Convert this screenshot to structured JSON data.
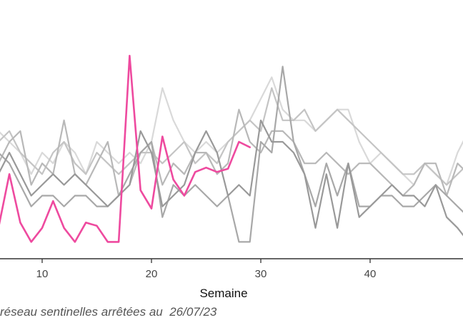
{
  "chart_data": {
    "type": "line",
    "xlabel": "Semaine",
    "ylabel": "",
    "x_ticks": [
      10,
      20,
      30,
      40
    ],
    "grid": false,
    "legend": "none",
    "colors": {
      "highlight": "#ee4a9f",
      "axis": "#333333"
    },
    "series": [
      {
        "style": "highlight",
        "color": "#ee4a9f",
        "x": [
          6,
          7,
          8,
          9,
          10,
          11,
          12,
          13,
          14,
          15,
          16,
          17,
          18,
          19,
          20,
          21,
          22,
          23,
          24,
          25,
          26,
          27,
          28,
          29
        ],
        "y": [
          2,
          7,
          2.5,
          0.7,
          2,
          4.5,
          2,
          0.7,
          2.5,
          2.2,
          0.7,
          0.7,
          18,
          5.5,
          3.8,
          10.5,
          6.5,
          5,
          7.2,
          7.6,
          7.2,
          7.5,
          10,
          9.5
        ]
      },
      {
        "color": "#d9d9d9",
        "x": [
          6,
          7,
          8,
          9,
          10,
          11,
          12,
          13,
          14,
          15,
          16,
          17,
          18,
          19,
          20,
          21,
          22,
          23,
          24,
          25,
          26,
          27,
          28,
          29,
          30,
          31,
          32,
          33,
          34,
          35,
          36,
          37,
          38,
          39,
          40,
          41,
          42,
          43,
          44,
          45,
          46,
          47,
          48,
          49
        ],
        "y": [
          11,
          10,
          9,
          7,
          9,
          8,
          10,
          9,
          7,
          10,
          9,
          8,
          9,
          8,
          10,
          15,
          12,
          10,
          9,
          10,
          9,
          10,
          11,
          12,
          14,
          16,
          13,
          12,
          12,
          11,
          12,
          13,
          13,
          10,
          8,
          9,
          8,
          7,
          6,
          8,
          7,
          6,
          9,
          11
        ]
      },
      {
        "color": "#c4c4c4",
        "x": [
          6,
          7,
          8,
          9,
          10,
          11,
          12,
          13,
          14,
          15,
          16,
          17,
          18,
          19,
          20,
          21,
          22,
          23,
          24,
          25,
          26,
          27,
          28,
          29,
          30,
          31,
          32,
          33,
          34,
          35,
          36,
          37,
          38,
          39,
          40,
          41,
          42,
          43,
          44,
          45,
          46,
          47,
          48,
          49
        ],
        "y": [
          10,
          11,
          9,
          8,
          7,
          9,
          10,
          8,
          7,
          9,
          8,
          7,
          8,
          9,
          9,
          8,
          9,
          10,
          8,
          9,
          8,
          10,
          11,
          12,
          11,
          15,
          12,
          12,
          13,
          11,
          12,
          13,
          12,
          11,
          10,
          9,
          8,
          7,
          7,
          8,
          7,
          6,
          7,
          8
        ]
      },
      {
        "color": "#b8b8b8",
        "x": [
          6,
          7,
          8,
          9,
          10,
          11,
          12,
          13,
          14,
          15,
          16,
          17,
          18,
          19,
          20,
          21,
          22,
          23,
          24,
          25,
          26,
          27,
          28,
          29,
          30,
          31,
          32,
          33,
          34,
          35,
          36,
          37,
          38,
          39,
          40,
          41,
          42,
          43,
          44,
          45,
          46,
          47,
          48,
          49
        ],
        "y": [
          8,
          10,
          11,
          6,
          8,
          7,
          12,
          7,
          6,
          8,
          10,
          5,
          6,
          9,
          10,
          6,
          8,
          7,
          9,
          9,
          7,
          8,
          13,
          10,
          9,
          11,
          11,
          10,
          8,
          8,
          9,
          8,
          7,
          8,
          8,
          7,
          6,
          5,
          6,
          8,
          8,
          5,
          8,
          7
        ]
      },
      {
        "color": "#a8a8a8",
        "x": [
          6,
          7,
          8,
          9,
          10,
          11,
          12,
          13,
          14,
          15,
          16,
          17,
          18,
          19,
          20,
          21,
          22,
          23,
          24,
          25,
          26,
          27,
          28,
          29,
          30,
          31,
          32,
          33,
          34,
          35,
          36,
          37,
          38,
          39,
          40,
          41,
          42,
          43,
          44,
          45,
          46,
          47,
          48,
          49
        ],
        "y": [
          9,
          8,
          6,
          4,
          5,
          5,
          4,
          5,
          5,
          4,
          4,
          5,
          7,
          9,
          10,
          3,
          6,
          5,
          6,
          5,
          4,
          5,
          0.7,
          0.7,
          10,
          9,
          17,
          10,
          7,
          4,
          8,
          5,
          8,
          4,
          4,
          5,
          5,
          4,
          4,
          5,
          6,
          5,
          4,
          3
        ]
      },
      {
        "color": "#999999",
        "x": [
          6,
          7,
          8,
          9,
          10,
          11,
          12,
          13,
          14,
          15,
          16,
          17,
          18,
          19,
          20,
          21,
          22,
          23,
          24,
          25,
          26,
          27,
          28,
          29,
          30,
          31,
          32,
          33,
          34,
          35,
          36,
          37,
          38,
          39,
          40,
          41,
          42,
          43,
          44,
          45,
          46,
          47,
          48,
          49
        ],
        "y": [
          7,
          9,
          7,
          5,
          6,
          7,
          6,
          7,
          6,
          5,
          4,
          5,
          6,
          11,
          9,
          4,
          5,
          6,
          9,
          11,
          9,
          5,
          6,
          5,
          12,
          10,
          10,
          9,
          7,
          2,
          7,
          2,
          8,
          3,
          4,
          5,
          6,
          5,
          5,
          4,
          6,
          3,
          2,
          0.7
        ]
      }
    ]
  },
  "footer": {
    "caption_text": "réseau sentinelles arrêtées au",
    "caption_date": "26/07/23"
  }
}
